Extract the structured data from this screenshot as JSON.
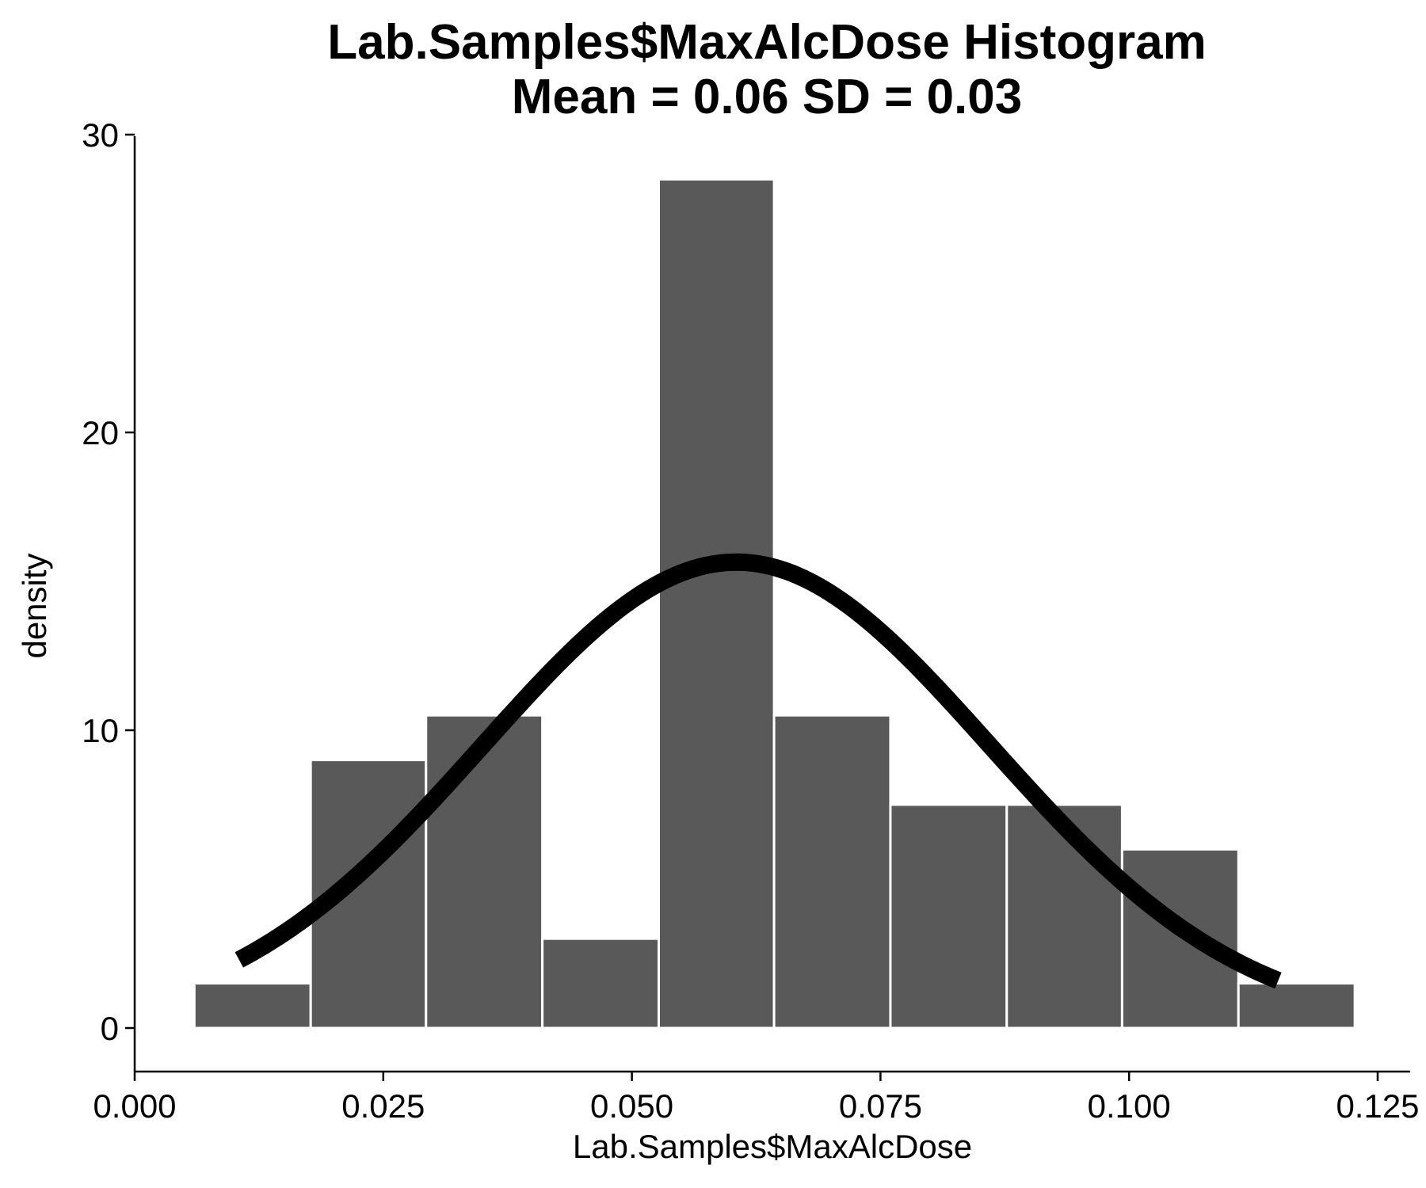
{
  "chart_data": {
    "type": "bar",
    "title": "Lab.Samples$MaxAlcDose Histogram",
    "subtitle": "Mean = 0.06 SD = 0.03",
    "xlabel": "Lab.Samples$MaxAlcDose",
    "ylabel": "density",
    "xlim": [
      0.0,
      0.125
    ],
    "ylim": [
      0,
      30
    ],
    "x_ticks": [
      "0.000",
      "0.025",
      "0.050",
      "0.075",
      "0.100",
      "0.125"
    ],
    "x_tick_values": [
      0.0,
      0.025,
      0.05,
      0.075,
      0.1,
      0.125
    ],
    "y_ticks": [
      "0",
      "10",
      "20",
      "30"
    ],
    "y_tick_values": [
      0,
      10,
      20,
      30
    ],
    "grid": false,
    "bins": [
      {
        "x0": 0.006,
        "x1": 0.0177,
        "density": 1.5
      },
      {
        "x0": 0.0177,
        "x1": 0.0293,
        "density": 9.0
      },
      {
        "x0": 0.0293,
        "x1": 0.041,
        "density": 10.5
      },
      {
        "x0": 0.041,
        "x1": 0.0527,
        "density": 3.0
      },
      {
        "x0": 0.0527,
        "x1": 0.0643,
        "density": 28.5
      },
      {
        "x0": 0.0643,
        "x1": 0.076,
        "density": 10.5
      },
      {
        "x0": 0.076,
        "x1": 0.0877,
        "density": 7.5
      },
      {
        "x0": 0.0877,
        "x1": 0.0993,
        "density": 7.5
      },
      {
        "x0": 0.0993,
        "x1": 0.111,
        "density": 6.0
      },
      {
        "x0": 0.111,
        "x1": 0.1227,
        "density": 1.5
      }
    ],
    "density_curve": {
      "distribution": "normal",
      "mean": 0.0605,
      "sd": 0.0255,
      "x_range": [
        0.0105,
        0.115
      ]
    },
    "colors": {
      "bar_fill": "#595959",
      "bar_edge": "#ffffff",
      "curve": "#000000"
    }
  }
}
